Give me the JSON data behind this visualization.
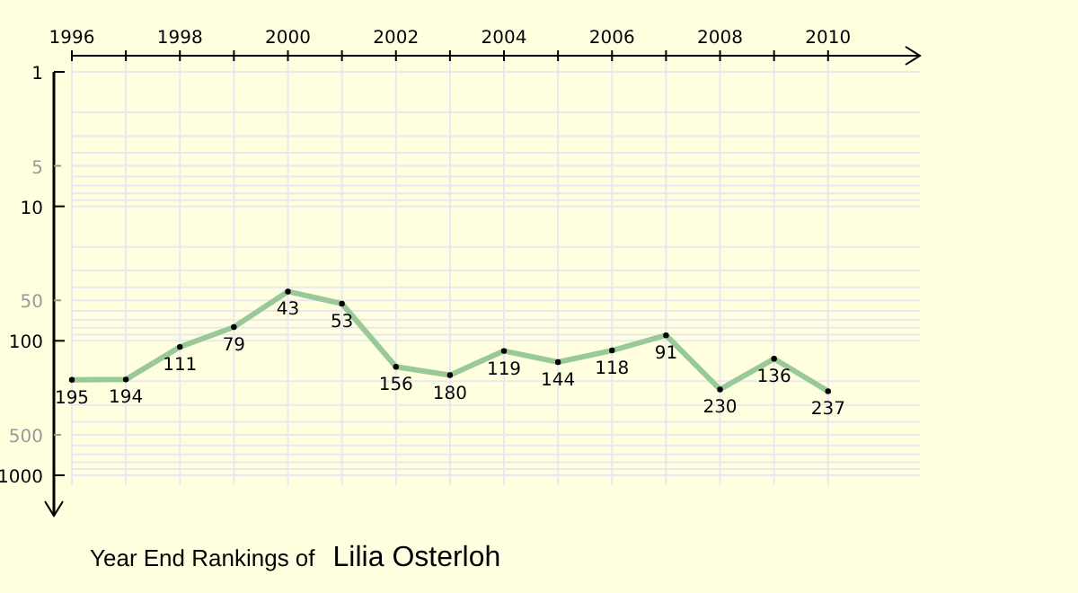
{
  "chart_data": {
    "type": "line",
    "title": "Year End Rankings of",
    "subtitle": "Lilia Osterloh",
    "x": [
      1996,
      1997,
      1998,
      1999,
      2000,
      2001,
      2002,
      2003,
      2004,
      2005,
      2006,
      2007,
      2008,
      2009,
      2010
    ],
    "series": [
      {
        "color": "#99c999",
        "values": [
          195,
          194,
          111,
          79,
          43,
          53,
          156,
          180,
          119,
          144,
          118,
          91,
          230,
          136,
          237
        ]
      }
    ],
    "xlim": [
      1996,
      2011.7
    ],
    "xticks": [
      1996,
      {
        "value": 1997,
        "label": null
      },
      1998,
      {
        "value": 1999,
        "label": null
      },
      2000,
      {
        "value": 2001,
        "label": null
      },
      2002,
      {
        "value": 2003,
        "label": null
      },
      2004,
      {
        "value": 2005,
        "label": null
      },
      2006,
      {
        "value": 2007,
        "label": null
      },
      2008,
      {
        "value": 2009,
        "label": null
      },
      2010
    ],
    "ylim": [
      2000,
      1
    ],
    "yticks": [
      1,
      5,
      10,
      50,
      100,
      500,
      1000
    ],
    "log": true,
    "grid": true,
    "data_labels": true,
    "marker": "circle",
    "line_style": "solid"
  }
}
